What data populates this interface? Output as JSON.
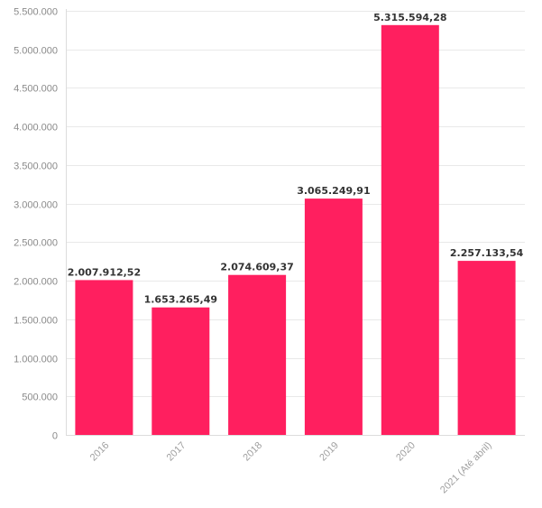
{
  "chart_data": {
    "type": "bar",
    "categories": [
      "2016",
      "2017",
      "2018",
      "2019",
      "2020",
      "2021 (Até abril)"
    ],
    "values": [
      2007912.52,
      1653265.49,
      2074609.37,
      3065249.91,
      5315594.28,
      2257133.54
    ],
    "value_labels": [
      "2.007.912,52",
      "1.653.265,49",
      "2.074.609,37",
      "3.065.249,91",
      "5.315.594,28",
      "2.257.133,54"
    ],
    "y_ticks": [
      0,
      500000,
      1000000,
      1500000,
      2000000,
      2500000,
      3000000,
      3500000,
      4000000,
      4500000,
      5000000,
      5500000
    ],
    "y_tick_labels": [
      "0",
      "500.000",
      "1.000.000",
      "1.500.000",
      "2.000.000",
      "2.500.000",
      "3.000.000",
      "3.500.000",
      "4.000.000",
      "4.500.000",
      "5.000.000",
      "5.500.000"
    ],
    "ylim": [
      0,
      5500000
    ],
    "title": "",
    "xlabel": "",
    "ylabel": "",
    "grid": true,
    "legend": "none",
    "bar_color": "#ff1f5f"
  }
}
